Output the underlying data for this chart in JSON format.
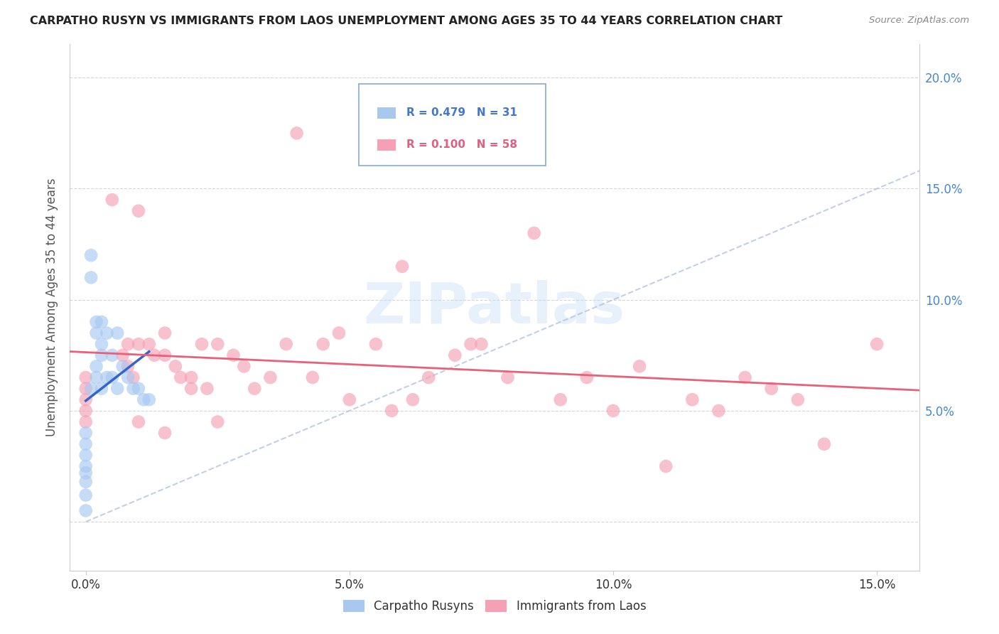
{
  "title": "CARPATHO RUSYN VS IMMIGRANTS FROM LAOS UNEMPLOYMENT AMONG AGES 35 TO 44 YEARS CORRELATION CHART",
  "source": "Source: ZipAtlas.com",
  "ylabel": "Unemployment Among Ages 35 to 44 years",
  "xlim": [
    -0.003,
    0.158
  ],
  "ylim": [
    -0.022,
    0.215
  ],
  "xticks": [
    0.0,
    0.05,
    0.1,
    0.15
  ],
  "xticklabels": [
    "0.0%",
    "5.0%",
    "10.0%",
    "15.0%"
  ],
  "yticks": [
    0.0,
    0.05,
    0.1,
    0.15,
    0.2
  ],
  "yticklabels": [
    "",
    "5.0%",
    "10.0%",
    "15.0%",
    "20.0%"
  ],
  "legend1_r": "0.479",
  "legend1_n": "31",
  "legend2_r": "0.100",
  "legend2_n": "58",
  "blue_scatter_color": "#a8c8f0",
  "pink_scatter_color": "#f5a0b5",
  "blue_line_color": "#3366cc",
  "pink_line_color": "#e8607a",
  "diagonal_color": "#aabbdd",
  "watermark_color": "#c5ddf5",
  "watermark_alpha": 0.4,
  "carpatho_x": [
    0.0,
    0.0,
    0.0,
    0.0,
    0.0,
    0.0,
    0.0,
    0.0,
    0.001,
    0.001,
    0.001,
    0.002,
    0.002,
    0.002,
    0.002,
    0.003,
    0.003,
    0.003,
    0.003,
    0.004,
    0.004,
    0.005,
    0.005,
    0.006,
    0.006,
    0.007,
    0.008,
    0.009,
    0.01,
    0.011,
    0.012
  ],
  "carpatho_y": [
    0.04,
    0.035,
    0.03,
    0.025,
    0.022,
    0.018,
    0.012,
    0.005,
    0.12,
    0.11,
    0.06,
    0.09,
    0.085,
    0.07,
    0.065,
    0.09,
    0.08,
    0.075,
    0.06,
    0.085,
    0.065,
    0.075,
    0.065,
    0.085,
    0.06,
    0.07,
    0.065,
    0.06,
    0.06,
    0.055,
    0.055
  ],
  "laos_x": [
    0.0,
    0.0,
    0.0,
    0.0,
    0.0,
    0.005,
    0.007,
    0.008,
    0.008,
    0.009,
    0.01,
    0.01,
    0.01,
    0.012,
    0.013,
    0.015,
    0.015,
    0.015,
    0.017,
    0.018,
    0.02,
    0.02,
    0.022,
    0.023,
    0.025,
    0.025,
    0.028,
    0.03,
    0.032,
    0.035,
    0.038,
    0.04,
    0.043,
    0.045,
    0.048,
    0.05,
    0.055,
    0.058,
    0.06,
    0.062,
    0.065,
    0.07,
    0.073,
    0.075,
    0.08,
    0.085,
    0.09,
    0.095,
    0.1,
    0.105,
    0.11,
    0.115,
    0.12,
    0.125,
    0.13,
    0.135,
    0.14,
    0.15
  ],
  "laos_y": [
    0.065,
    0.06,
    0.055,
    0.05,
    0.045,
    0.145,
    0.075,
    0.08,
    0.07,
    0.065,
    0.14,
    0.08,
    0.045,
    0.08,
    0.075,
    0.085,
    0.075,
    0.04,
    0.07,
    0.065,
    0.065,
    0.06,
    0.08,
    0.06,
    0.08,
    0.045,
    0.075,
    0.07,
    0.06,
    0.065,
    0.08,
    0.175,
    0.065,
    0.08,
    0.085,
    0.055,
    0.08,
    0.05,
    0.115,
    0.055,
    0.065,
    0.075,
    0.08,
    0.08,
    0.065,
    0.13,
    0.055,
    0.065,
    0.05,
    0.07,
    0.025,
    0.055,
    0.05,
    0.065,
    0.06,
    0.055,
    0.035,
    0.08
  ]
}
